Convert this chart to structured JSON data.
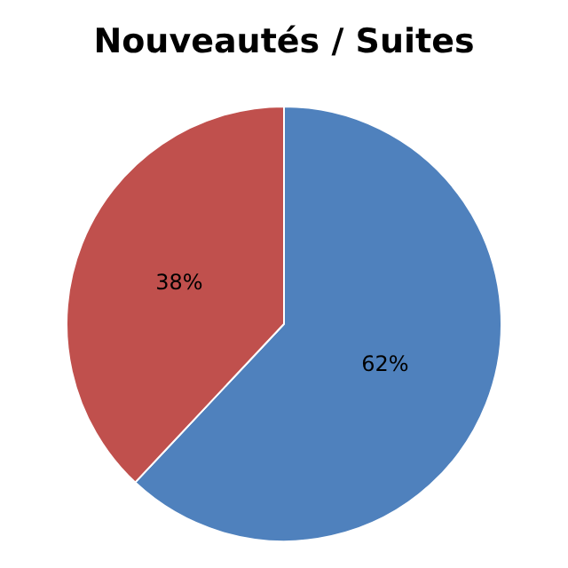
{
  "chart_data": {
    "type": "pie",
    "title": "Nouveautés / Suites",
    "categories": [
      null,
      null
    ],
    "values": [
      62,
      38
    ],
    "colors": [
      "#4f81bd",
      "#c0504d"
    ],
    "value_labels": [
      "62%",
      "38%"
    ],
    "legend": false
  }
}
